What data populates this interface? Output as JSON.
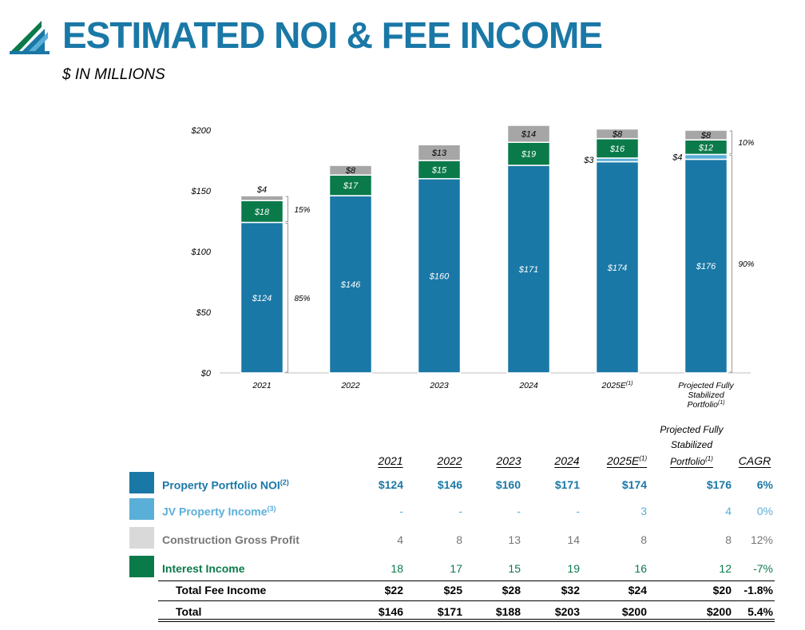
{
  "header": {
    "title": "ESTIMATED NOI & FEE INCOME",
    "subtitle": "$ IN MILLIONS"
  },
  "colors": {
    "noi": "#1a78a6",
    "jv": "#5aafd8",
    "construction": "#a6a6a6",
    "interest": "#0b7a4a",
    "title": "#1a78a6"
  },
  "chart_data": {
    "type": "bar",
    "stacked": true,
    "categories": [
      "2021",
      "2022",
      "2023",
      "2024",
      "2025E",
      "Projected Fully Stabilized Portfolio"
    ],
    "category_labels": [
      {
        "lines": [
          "2021"
        ],
        "sup": ""
      },
      {
        "lines": [
          "2022"
        ],
        "sup": ""
      },
      {
        "lines": [
          "2023"
        ],
        "sup": ""
      },
      {
        "lines": [
          "2024"
        ],
        "sup": ""
      },
      {
        "lines": [
          "2025E"
        ],
        "sup": "(1)"
      },
      {
        "lines": [
          "Projected Fully",
          "Stabilized",
          "Portfolio"
        ],
        "sup": "(1)"
      }
    ],
    "series": [
      {
        "key": "noi",
        "values": [
          124,
          146,
          160,
          171,
          174,
          176
        ],
        "labels": [
          "$124",
          "$146",
          "$160",
          "$171",
          "$174",
          "$176"
        ]
      },
      {
        "key": "jv",
        "values": [
          0,
          0,
          0,
          0,
          3,
          4
        ],
        "labels": [
          "",
          "",
          "",
          "",
          "$3",
          "$4"
        ]
      },
      {
        "key": "interest",
        "values": [
          18,
          17,
          15,
          19,
          16,
          12
        ],
        "labels": [
          "$18",
          "$17",
          "$15",
          "$19",
          "$16",
          "$12"
        ]
      },
      {
        "key": "construction",
        "values": [
          4,
          8,
          13,
          14,
          8,
          8
        ],
        "labels": [
          "$4",
          "$8",
          "$13",
          "$14",
          "$8",
          "$8"
        ]
      }
    ],
    "ylim": [
      0,
      200
    ],
    "yticks": [
      0,
      50,
      100,
      150,
      200
    ],
    "ytick_labels": [
      "$0",
      "$50",
      "$100",
      "$150",
      "$200"
    ],
    "xlabel": "",
    "ylabel": "",
    "annotations": [
      {
        "bar": 0,
        "text": "15%",
        "from": 124,
        "to": 146
      },
      {
        "bar": 0,
        "text": "85%",
        "from": 0,
        "to": 124
      },
      {
        "bar": 5,
        "text": "10%",
        "from": 180,
        "to": 200
      },
      {
        "bar": 5,
        "text": "90%",
        "from": 0,
        "to": 180
      }
    ]
  },
  "table": {
    "columns": [
      {
        "label": "2021",
        "sup": ""
      },
      {
        "label": "2022",
        "sup": ""
      },
      {
        "label": "2023",
        "sup": ""
      },
      {
        "label": "2024",
        "sup": ""
      },
      {
        "label": "2025E",
        "sup": "(1)"
      },
      {
        "label": "Portfolio",
        "sup": "(1)",
        "above": [
          "Projected Fully",
          "Stabilized"
        ]
      },
      {
        "label": "CAGR",
        "sup": ""
      }
    ],
    "rows": [
      {
        "key": "noi",
        "label": "Property Portfolio NOI",
        "sup": "(2)",
        "color": "#1a78a6",
        "bold_values": true,
        "values": [
          "$124",
          "$146",
          "$160",
          "$171",
          "$174",
          "$176",
          "6%"
        ]
      },
      {
        "key": "jv",
        "label": "JV Property Income",
        "sup": "(3)",
        "color": "#5aafd8",
        "bold_values": false,
        "values": [
          "-",
          "-",
          "-",
          "-",
          "3",
          "4",
          "0%"
        ]
      },
      {
        "key": "construction",
        "label": "Construction Gross Profit",
        "sup": "",
        "color": "#777777",
        "swatch": "#d9d9d9",
        "bold_values": false,
        "values": [
          "4",
          "8",
          "13",
          "14",
          "8",
          "8",
          "12%"
        ]
      },
      {
        "key": "interest",
        "label": "Interest Income",
        "sup": "",
        "color": "#0b7a4a",
        "bold_values": false,
        "values": [
          "18",
          "17",
          "15",
          "19",
          "16",
          "12",
          "-7%"
        ]
      }
    ],
    "total_fee": {
      "label": "Total Fee Income",
      "values": [
        "$22",
        "$25",
        "$28",
        "$32",
        "$24",
        "$20",
        "-1.8%"
      ]
    },
    "total": {
      "label": "Total",
      "values": [
        "$146",
        "$171",
        "$188",
        "$203",
        "$200",
        "$200",
        "5.4%"
      ]
    }
  }
}
